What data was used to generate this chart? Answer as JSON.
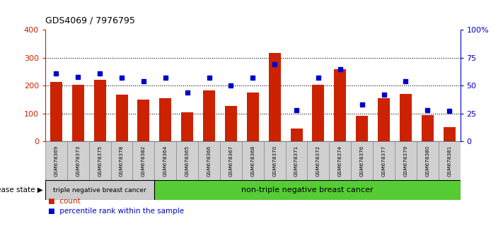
{
  "title": "GDS4069 / 7976795",
  "samples": [
    "GSM678369",
    "GSM678373",
    "GSM678375",
    "GSM678378",
    "GSM678382",
    "GSM678364",
    "GSM678365",
    "GSM678366",
    "GSM678367",
    "GSM678368",
    "GSM678370",
    "GSM678371",
    "GSM678372",
    "GSM678374",
    "GSM678376",
    "GSM678377",
    "GSM678379",
    "GSM678380",
    "GSM678381"
  ],
  "counts": [
    213,
    202,
    222,
    167,
    150,
    155,
    105,
    182,
    126,
    176,
    318,
    46,
    204,
    260,
    92,
    155,
    170,
    93,
    50
  ],
  "percentiles": [
    61,
    58,
    61,
    57,
    54,
    57,
    44,
    57,
    50,
    57,
    69,
    28,
    57,
    65,
    33,
    42,
    54,
    28,
    27
  ],
  "group1_count": 5,
  "group1_label": "triple negative breast cancer",
  "group2_label": "non-triple negative breast cancer",
  "bar_color": "#cc2200",
  "dot_color": "#0000cc",
  "left_axis_color": "#cc2200",
  "right_axis_color": "#0000cc",
  "ylim_left": [
    0,
    400
  ],
  "ylim_right": [
    0,
    100
  ],
  "yticks_left": [
    0,
    100,
    200,
    300,
    400
  ],
  "yticks_right": [
    0,
    25,
    50,
    75,
    100
  ],
  "background_color": "#ffffff",
  "group1_bg": "#cccccc",
  "group2_bg": "#55cc33",
  "legend_count_label": "count",
  "legend_pct_label": "percentile rank within the sample",
  "disease_state_label": "disease state"
}
